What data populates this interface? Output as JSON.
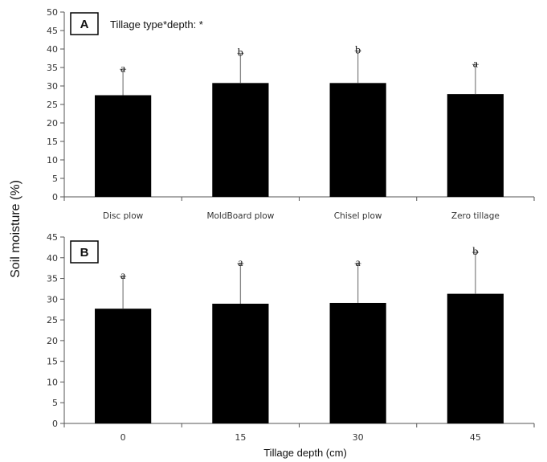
{
  "ylabel": "Soil moisture (%)",
  "chart_data": [
    {
      "type": "bar",
      "panel": "A",
      "annotation": "Tillage type*depth: *",
      "categories": [
        "Disc plow",
        "MoldBoard plow",
        "Chisel plow",
        "Zero tillage"
      ],
      "values": [
        27.5,
        30.8,
        30.8,
        27.8
      ],
      "errors": [
        7.0,
        8.0,
        8.7,
        8.0
      ],
      "letters": [
        "a",
        "b",
        "b",
        "a"
      ],
      "ylim": [
        0,
        50
      ],
      "yticks": [
        0,
        5,
        10,
        15,
        20,
        25,
        30,
        35,
        40,
        45,
        50
      ],
      "xlabel": "",
      "bar_color": "#000000",
      "error_color": "#888888"
    },
    {
      "type": "bar",
      "panel": "B",
      "categories": [
        "0",
        "15",
        "30",
        "45"
      ],
      "values": [
        27.7,
        28.9,
        29.1,
        31.3
      ],
      "errors": [
        7.8,
        9.7,
        9.5,
        10.0
      ],
      "letters": [
        "a",
        "a",
        "a",
        "b"
      ],
      "ylim": [
        0,
        45
      ],
      "yticks": [
        0,
        5,
        10,
        15,
        20,
        25,
        30,
        35,
        40,
        45
      ],
      "xlabel": "Tillage depth (cm)",
      "bar_color": "#000000",
      "error_color": "#888888"
    }
  ]
}
